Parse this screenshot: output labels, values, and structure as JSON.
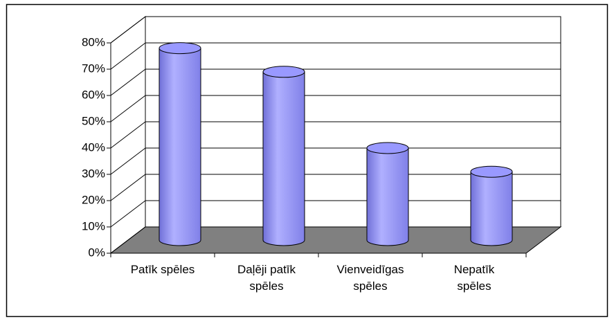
{
  "chart_data": {
    "type": "bar3d-cylinder",
    "categories": [
      "Patīk spēles",
      "Daļēji patīk spēles",
      "Vienveidīgas spēles",
      "Nepatīk spēles"
    ],
    "values": [
      73,
      64,
      35,
      26
    ],
    "color": "#9999ff",
    "ylim": [
      0,
      80
    ],
    "yticks": [
      {
        "value": 0,
        "label": "0%"
      },
      {
        "value": 10,
        "label": "10%"
      },
      {
        "value": 20,
        "label": "20%"
      },
      {
        "value": 30,
        "label": "30%"
      },
      {
        "value": 40,
        "label": "40%"
      },
      {
        "value": 50,
        "label": "50%"
      },
      {
        "value": 60,
        "label": "60%"
      },
      {
        "value": 70,
        "label": "70%"
      },
      {
        "value": 80,
        "label": "80%"
      }
    ],
    "grid": true
  }
}
